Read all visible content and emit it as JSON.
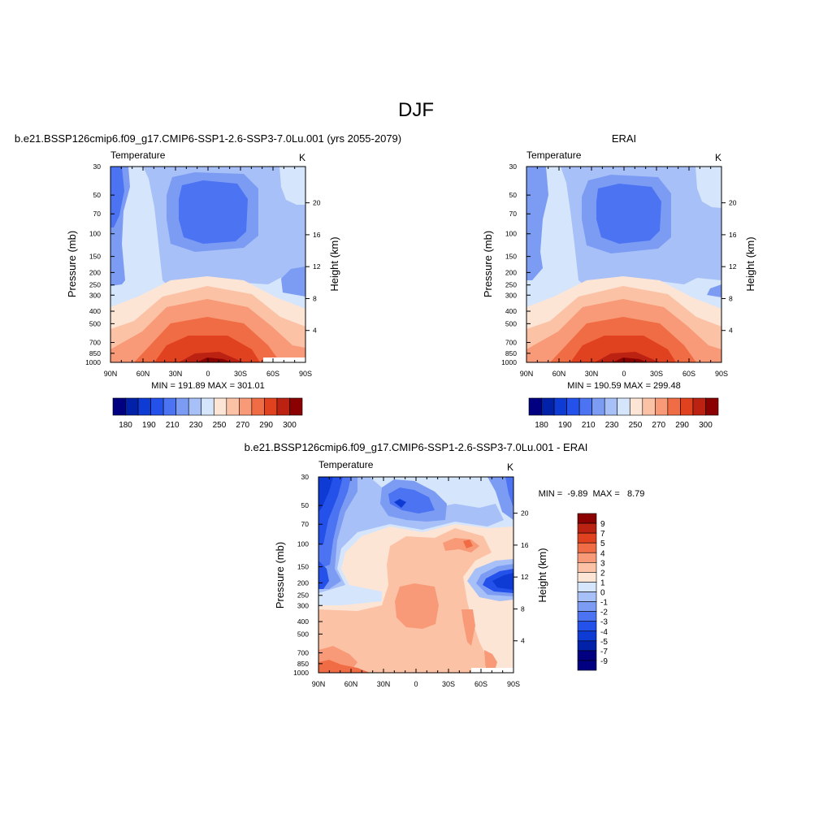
{
  "figure": {
    "title": "DJF"
  },
  "colors": {
    "abs_levels": [
      "#000080",
      "#0021a8",
      "#0f3bd5",
      "#2451ea",
      "#4b73f2",
      "#7c9cf4",
      "#a7c0f7",
      "#d5e5fb",
      "#fde5d6",
      "#fcc2a6",
      "#f89a78",
      "#f06c44",
      "#e0411f",
      "#bb2212",
      "#8b0000"
    ],
    "diff_levels": [
      "#000080",
      "#0021a8",
      "#0f3bd5",
      "#2451ea",
      "#4b73f2",
      "#7c9cf4",
      "#a7c0f7",
      "#d5e5fb",
      "#fde5d6",
      "#fcc2a6",
      "#f89a78",
      "#f06c44",
      "#e0411f",
      "#bb2212",
      "#8b0000"
    ]
  },
  "chart_data": [
    {
      "type": "heatmap",
      "title": "b.e21.BSSP126cmip6.f09_g17.CMIP6-SSP1-2.6-SSP3-7.0Lu.001 (yrs 2055-2079)",
      "left_label": "Temperature",
      "right_label": "K",
      "ylabel": "Pressure (mb)",
      "y2label": "Height (km)",
      "x_ticks": [
        "90N",
        "60N",
        "30N",
        "0",
        "30S",
        "60S",
        "90S"
      ],
      "y_ticks": [
        "30",
        "50",
        "70",
        "100",
        "150",
        "200",
        "250",
        "300",
        "400",
        "500",
        "700",
        "850",
        "1000"
      ],
      "y_ticks_numeric": [
        30,
        50,
        70,
        100,
        150,
        200,
        250,
        300,
        400,
        500,
        700,
        850,
        1000
      ],
      "y2_ticks": [
        "4",
        "8",
        "12",
        "16",
        "20"
      ],
      "y2_ticks_numeric": [
        4,
        8,
        12,
        16,
        20
      ],
      "ylim": [
        1000,
        30
      ],
      "stats": "MIN = 191.89  MAX = 301.01",
      "colorbar_ticks": [
        "180",
        "190",
        "210",
        "230",
        "250",
        "270",
        "290",
        "300"
      ],
      "colorbar_levels": [
        180,
        185,
        190,
        200,
        210,
        220,
        230,
        240,
        250,
        260,
        270,
        280,
        290,
        295,
        300
      ]
    },
    {
      "type": "heatmap",
      "title": "ERAI",
      "left_label": "Temperature",
      "right_label": "K",
      "ylabel": "Pressure (mb)",
      "y2label": "Height (km)",
      "x_ticks": [
        "90N",
        "60N",
        "30N",
        "0",
        "30S",
        "60S",
        "90S"
      ],
      "y_ticks": [
        "30",
        "50",
        "70",
        "100",
        "150",
        "200",
        "250",
        "300",
        "400",
        "500",
        "700",
        "850",
        "1000"
      ],
      "y_ticks_numeric": [
        30,
        50,
        70,
        100,
        150,
        200,
        250,
        300,
        400,
        500,
        700,
        850,
        1000
      ],
      "y2_ticks": [
        "4",
        "8",
        "12",
        "16",
        "20"
      ],
      "y2_ticks_numeric": [
        4,
        8,
        12,
        16,
        20
      ],
      "ylim": [
        1000,
        30
      ],
      "stats": "MIN = 190.59  MAX = 299.48",
      "colorbar_ticks": [
        "180",
        "190",
        "210",
        "230",
        "250",
        "270",
        "290",
        "300"
      ],
      "colorbar_levels": [
        180,
        185,
        190,
        200,
        210,
        220,
        230,
        240,
        250,
        260,
        270,
        280,
        290,
        295,
        300
      ]
    },
    {
      "type": "heatmap",
      "title": "b.e21.BSSP126cmip6.f09_g17.CMIP6-SSP1-2.6-SSP3-7.0Lu.001 - ERAI",
      "left_label": "Temperature",
      "right_label": "K",
      "ylabel": "Pressure (mb)",
      "y2label": "Height (km)",
      "x_ticks": [
        "90N",
        "60N",
        "30N",
        "0",
        "30S",
        "60S",
        "90S"
      ],
      "y_ticks": [
        "30",
        "50",
        "70",
        "100",
        "150",
        "200",
        "250",
        "300",
        "400",
        "500",
        "700",
        "850",
        "1000"
      ],
      "y_ticks_numeric": [
        30,
        50,
        70,
        100,
        150,
        200,
        250,
        300,
        400,
        500,
        700,
        850,
        1000
      ],
      "y2_ticks": [
        "4",
        "8",
        "12",
        "16",
        "20"
      ],
      "y2_ticks_numeric": [
        4,
        8,
        12,
        16,
        20
      ],
      "ylim": [
        1000,
        30
      ],
      "stats": "MIN =  -9.89  MAX =   8.79",
      "colorbar_ticks": [
        "9",
        "7",
        "5",
        "4",
        "3",
        "2",
        "1",
        "0",
        "-1",
        "-2",
        "-3",
        "-4",
        "-5",
        "-7",
        "-9"
      ],
      "colorbar_levels": [
        -9,
        -7,
        -5,
        -4,
        -3,
        -2,
        -1,
        0,
        1,
        2,
        3,
        4,
        5,
        7,
        9
      ]
    }
  ]
}
